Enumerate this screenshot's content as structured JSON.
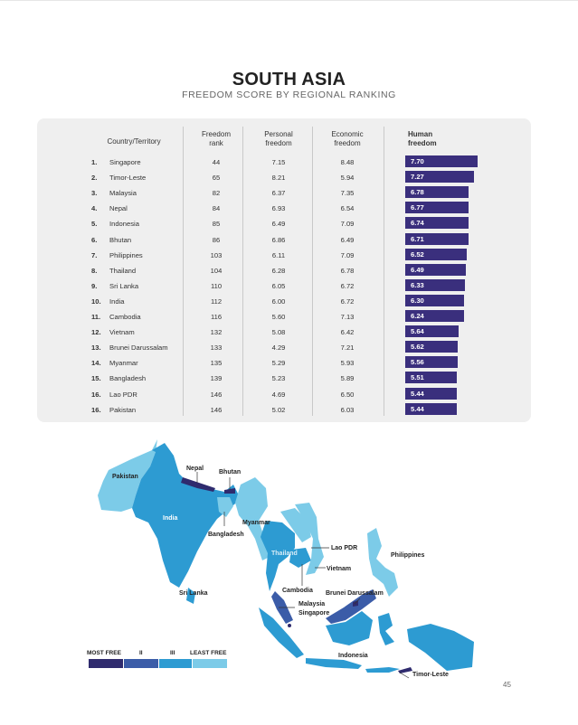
{
  "title": "SOUTH ASIA",
  "subtitle": "FREEDOM SCORE BY REGIONAL RANKING",
  "table": {
    "headers": {
      "country": "Country/Territory",
      "freedom_rank": [
        "Freedom",
        "rank"
      ],
      "personal": [
        "Personal",
        "freedom"
      ],
      "economic": [
        "Economic",
        "freedom"
      ],
      "human": [
        "Human",
        "freedom"
      ]
    },
    "rows": [
      {
        "num": "1.",
        "name": "Singapore",
        "rank": "44",
        "personal": "7.15",
        "economic": "8.48",
        "human": "7.70",
        "human_value": 7.7
      },
      {
        "num": "2.",
        "name": "Timor-Leste",
        "rank": "65",
        "personal": "8.21",
        "economic": "5.94",
        "human": "7.27",
        "human_value": 7.27
      },
      {
        "num": "3.",
        "name": "Malaysia",
        "rank": "82",
        "personal": "6.37",
        "economic": "7.35",
        "human": "6.78",
        "human_value": 6.78
      },
      {
        "num": "4.",
        "name": "Nepal",
        "rank": "84",
        "personal": "6.93",
        "economic": "6.54",
        "human": "6.77",
        "human_value": 6.77
      },
      {
        "num": "5.",
        "name": "Indonesia",
        "rank": "85",
        "personal": "6.49",
        "economic": "7.09",
        "human": "6.74",
        "human_value": 6.74
      },
      {
        "num": "6.",
        "name": "Bhutan",
        "rank": "86",
        "personal": "6.86",
        "economic": "6.49",
        "human": "6.71",
        "human_value": 6.71
      },
      {
        "num": "7.",
        "name": "Philippines",
        "rank": "103",
        "personal": "6.11",
        "economic": "7.09",
        "human": "6.52",
        "human_value": 6.52
      },
      {
        "num": "8.",
        "name": "Thailand",
        "rank": "104",
        "personal": "6.28",
        "economic": "6.78",
        "human": "6.49",
        "human_value": 6.49
      },
      {
        "num": "9.",
        "name": "Sri Lanka",
        "rank": "110",
        "personal": "6.05",
        "economic": "6.72",
        "human": "6.33",
        "human_value": 6.33
      },
      {
        "num": "10.",
        "name": "India",
        "rank": "112",
        "personal": "6.00",
        "economic": "6.72",
        "human": "6.30",
        "human_value": 6.3
      },
      {
        "num": "11.",
        "name": "Cambodia",
        "rank": "116",
        "personal": "5.60",
        "economic": "7.13",
        "human": "6.24",
        "human_value": 6.24
      },
      {
        "num": "12.",
        "name": "Vietnam",
        "rank": "132",
        "personal": "5.08",
        "economic": "6.42",
        "human": "5.64",
        "human_value": 5.64
      },
      {
        "num": "13.",
        "name": "Brunei Darussalam",
        "rank": "133",
        "personal": "4.29",
        "economic": "7.21",
        "human": "5.62",
        "human_value": 5.62
      },
      {
        "num": "14.",
        "name": "Myanmar",
        "rank": "135",
        "personal": "5.29",
        "economic": "5.93",
        "human": "5.56",
        "human_value": 5.56
      },
      {
        "num": "15.",
        "name": "Bangladesh",
        "rank": "139",
        "personal": "5.23",
        "economic": "5.89",
        "human": "5.51",
        "human_value": 5.51
      },
      {
        "num": "16.",
        "name": "Lao PDR",
        "rank": "146",
        "personal": "4.69",
        "economic": "6.50",
        "human": "5.44",
        "human_value": 5.44
      },
      {
        "num": "16.",
        "name": "Pakistan",
        "rank": "146",
        "personal": "5.02",
        "economic": "6.03",
        "human": "5.44",
        "human_value": 5.44
      }
    ],
    "bar_color": "#3a2f7d"
  },
  "map": {
    "labels": {
      "pakistan": "Pakistan",
      "nepal": "Nepal",
      "bhutan": "Bhutan",
      "india": "India",
      "myanmar": "Myanmar",
      "bangladesh": "Bangladesh",
      "thailand": "Thailand",
      "lao": "Lao PDR",
      "vietnam": "Vietnam",
      "philippines": "Philippines",
      "cambodia": "Cambodia",
      "sri_lanka": "Sri Lanka",
      "brunei": "Brunei Darussalam",
      "malaysia": "Malaysia",
      "singapore": "Singapore",
      "indonesia": "Indonesia",
      "timor": "Timor-Leste"
    },
    "colors": {
      "most_free": "#2f2b6e",
      "tier2": "#3b5ca8",
      "tier3": "#2d9bd2",
      "least_free": "#7ccbe8"
    }
  },
  "legend": {
    "most_free": "MOST FREE",
    "ii": "II",
    "iii": "III",
    "least_free": "LEAST FREE"
  },
  "page_number": "45"
}
